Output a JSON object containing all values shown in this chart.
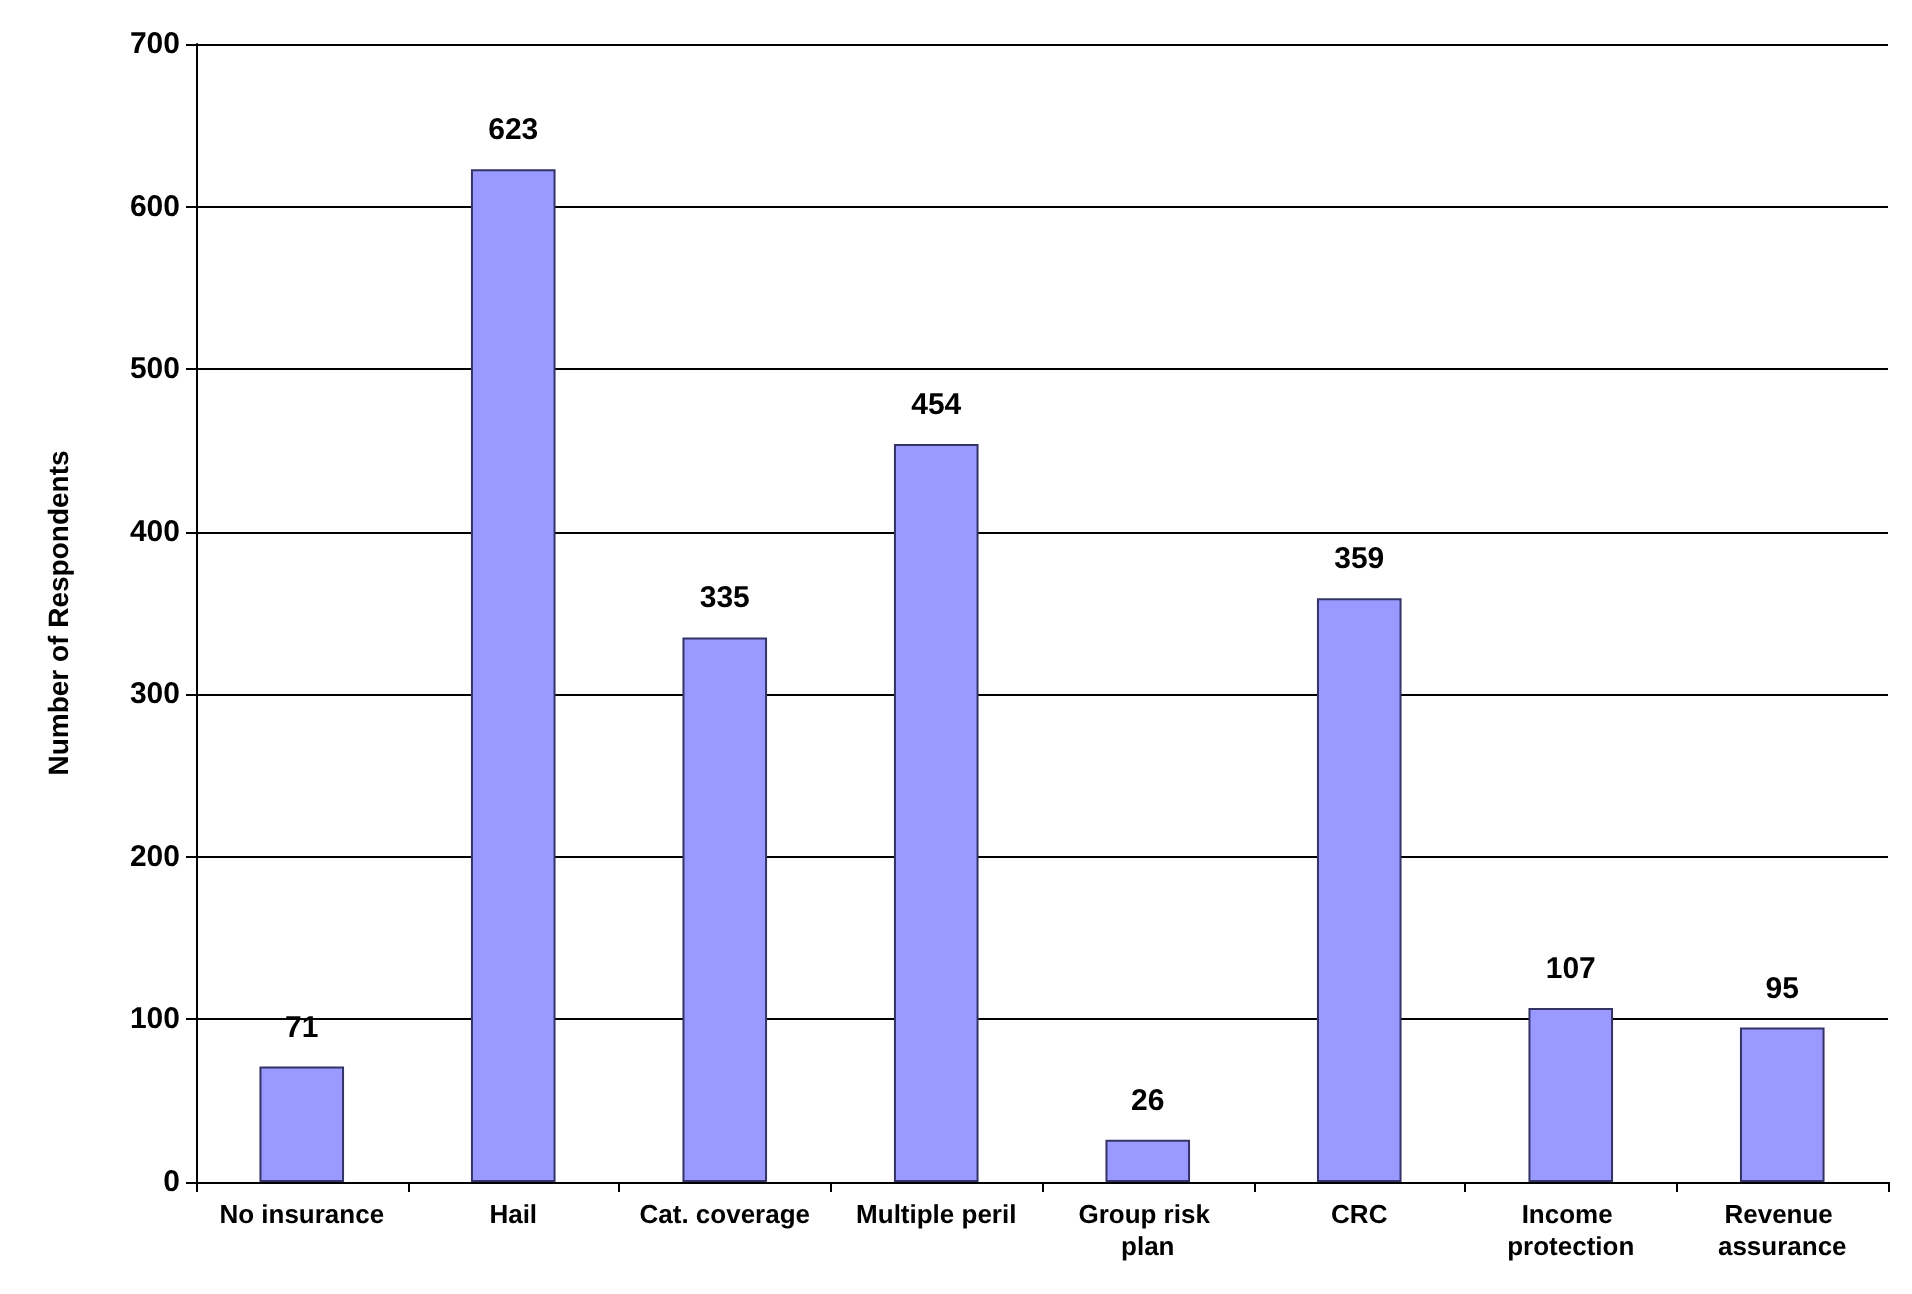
{
  "chart_data": {
    "type": "bar",
    "ylabel": "Number of Respondents",
    "categories": [
      "No insurance",
      "Hail",
      "Cat. coverage",
      "Multiple peril",
      "Group risk plan",
      "CRC",
      "Income protection",
      "Revenue assurance"
    ],
    "values": [
      71,
      623,
      335,
      454,
      26,
      359,
      107,
      95
    ],
    "color": "#9999ff",
    "ylim": [
      0,
      700
    ],
    "yticks": [
      0,
      100,
      200,
      300,
      400,
      500,
      600,
      700
    ],
    "grid": "y",
    "data_labels": true
  }
}
